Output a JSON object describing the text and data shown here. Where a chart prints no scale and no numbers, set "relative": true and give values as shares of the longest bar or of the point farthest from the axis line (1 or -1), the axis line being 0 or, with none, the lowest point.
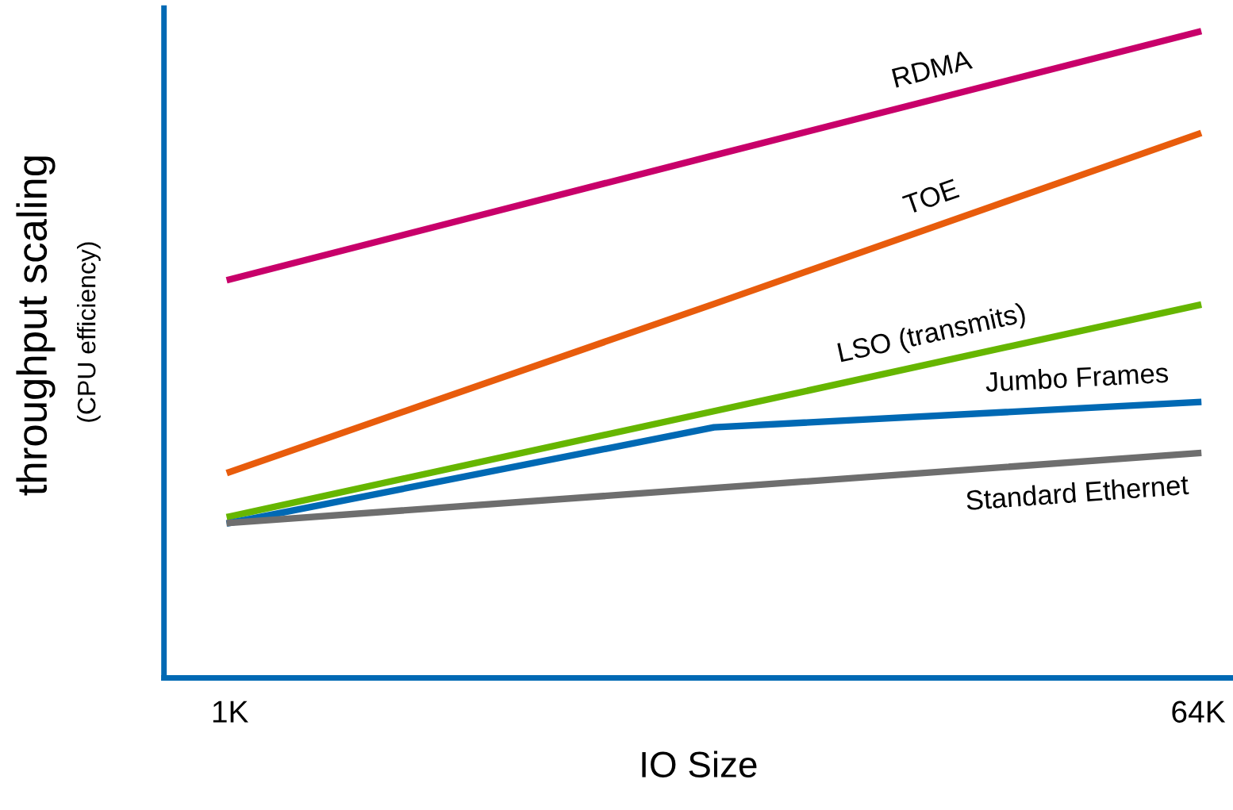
{
  "chart_data": {
    "type": "line",
    "relative": true,
    "xlabel": "IO Size",
    "ylabel": "throughput scaling",
    "annotations": [
      "(CPU efficiency)"
    ],
    "categories": [
      "1K",
      null,
      "64K"
    ],
    "legend": false,
    "grid": false,
    "marker": "none",
    "line_style": "solid",
    "series": [
      {
        "name": "RDMA",
        "color": "#c8006a",
        "values": [
          0.617,
          0.809,
          1.0
        ]
      },
      {
        "name": "TOE",
        "color": "#e85c0c",
        "values": [
          0.319,
          0.579,
          0.842
        ]
      },
      {
        "name": "LSO (transmits)",
        "color": "#66b600",
        "values": [
          0.25,
          0.413,
          0.577
        ]
      },
      {
        "name": "Jumbo Frames",
        "color": "#0069b4",
        "values": [
          0.24,
          0.388,
          0.427
        ]
      },
      {
        "name": "Standard Ethernet",
        "color": "#6e6e6e",
        "values": [
          0.24,
          0.294,
          0.348
        ]
      }
    ]
  }
}
